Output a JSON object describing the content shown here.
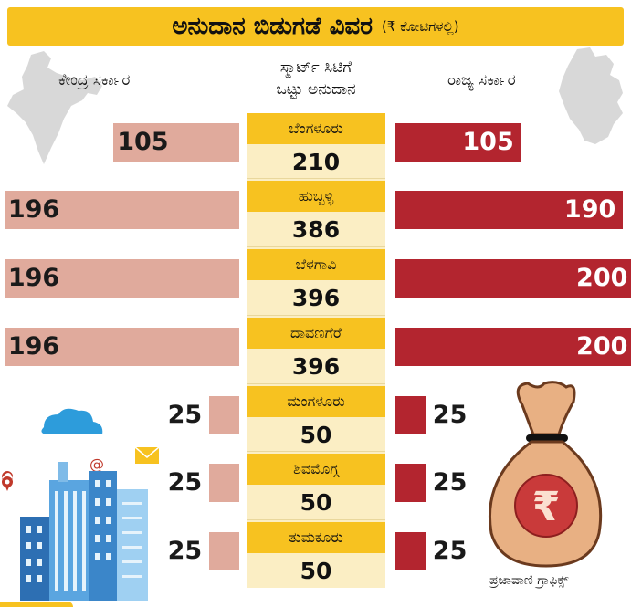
{
  "title": "ಅನುದಾನ ಬಿಡುಗಡೆ ವಿವರ",
  "unit": "(₹ ಕೋಟಿಗಳಲ್ಲಿ)",
  "left_header": "ಕೇಂದ್ರ ಸರ್ಕಾರ",
  "right_header": "ರಾಜ್ಯ ಸರ್ಕಾರ",
  "center_header": [
    "ಸ್ಮಾರ್ಟ್ ಸಿಟಿಗೆ",
    "ಒಟ್ಟು ಅನುದಾನ"
  ],
  "credit": "ಪ್ರಜಾವಾಣಿ ಗ್ರಾಫಿಕ್ಸ್",
  "colors": {
    "header": "#f7c220",
    "central": "#e0aa9c",
    "state": "#b3252f",
    "total_bg": "#fbeec4"
  },
  "chart_data": {
    "type": "bar",
    "categories": [
      "ಬೆಂಗಳೂರು",
      "ಹುಬ್ಬಳ್ಳಿ",
      "ಬೆಳಗಾವಿ",
      "ದಾವಣಗೆರೆ",
      "ಮಂಗಳೂರು",
      "ಶಿವಮೊಗ್ಗ",
      "ತುಮಕೂರು"
    ],
    "series": [
      {
        "name": "ಕೇಂದ್ರ ಸರ್ಕಾರ",
        "values": [
          105,
          196,
          196,
          196,
          25,
          25,
          25
        ]
      },
      {
        "name": "ರಾಜ್ಯ ಸರ್ಕಾರ",
        "values": [
          105,
          190,
          200,
          200,
          25,
          25,
          25
        ]
      }
    ],
    "totals": [
      210,
      386,
      396,
      396,
      50,
      50,
      50
    ]
  }
}
